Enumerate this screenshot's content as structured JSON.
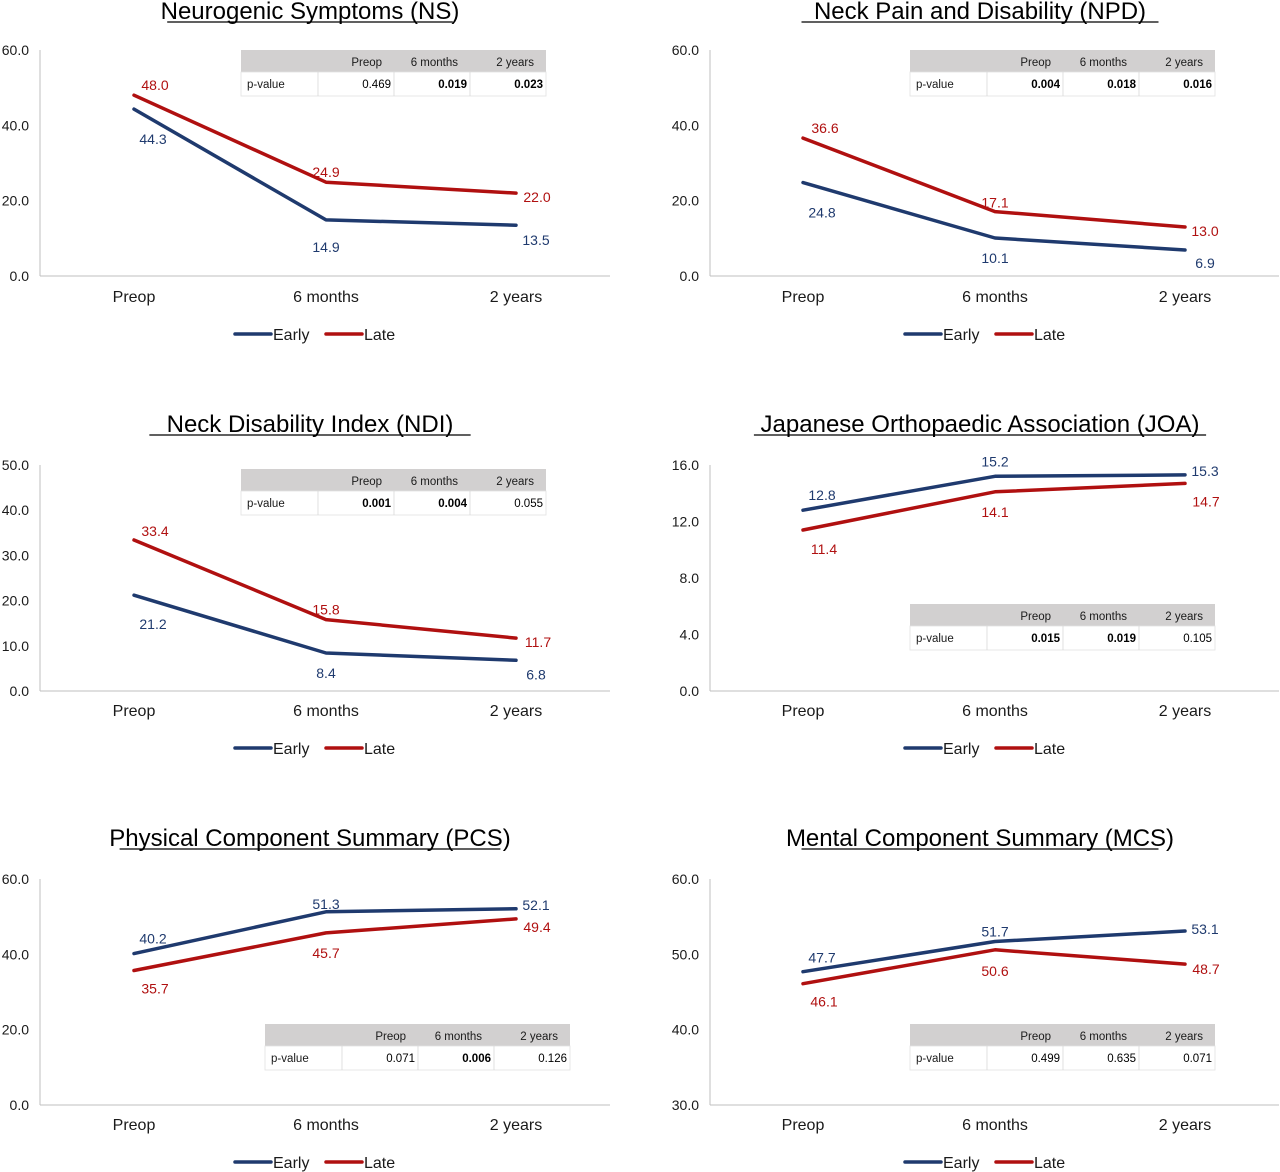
{
  "legend_labels": [
    "Early",
    "Late"
  ],
  "colors": {
    "early": "#1f3a6e",
    "late": "#b01010",
    "header_bg": "#d2d0d0",
    "axis": "#bfbfbf",
    "text": "#1a1a1a"
  },
  "chart_data": [
    {
      "type": "line",
      "title": "Neurogenic Symptoms (NS)",
      "categories": [
        "Preop",
        "6 months",
        "2 years"
      ],
      "ylim": [
        0,
        60
      ],
      "yticks": [
        "0.0",
        "20.0",
        "40.0",
        "60.0"
      ],
      "series": [
        {
          "name": "Early",
          "values": [
            44.3,
            14.9,
            13.5
          ],
          "labels": [
            "44.3",
            "14.9",
            "13.5"
          ]
        },
        {
          "name": "Late",
          "values": [
            48.0,
            24.9,
            22.0
          ],
          "labels": [
            "48.0",
            "24.9",
            "22.0"
          ]
        }
      ],
      "pvalue_table": {
        "row_label": "p-value",
        "headers": [
          "Preop",
          "6 months",
          "2 years"
        ],
        "values": [
          "0.469",
          "0.019",
          "0.023"
        ],
        "bold": [
          false,
          true,
          true
        ]
      },
      "legend": "bottom"
    },
    {
      "type": "line",
      "title": "Neck Pain and Disability (NPD)",
      "categories": [
        "Preop",
        "6 months",
        "2 years"
      ],
      "ylim": [
        0,
        60
      ],
      "yticks": [
        "0.0",
        "20.0",
        "40.0",
        "60.0"
      ],
      "series": [
        {
          "name": "Early",
          "values": [
            24.8,
            10.1,
            6.9
          ],
          "labels": [
            "24.8",
            "10.1",
            "6.9"
          ]
        },
        {
          "name": "Late",
          "values": [
            36.6,
            17.1,
            13.0
          ],
          "labels": [
            "36.6",
            "17.1",
            "13.0"
          ]
        }
      ],
      "pvalue_table": {
        "row_label": "p-value",
        "headers": [
          "Preop",
          "6 months",
          "2 years"
        ],
        "values": [
          "0.004",
          "0.018",
          "0.016"
        ],
        "bold": [
          true,
          true,
          true
        ]
      },
      "legend": "bottom"
    },
    {
      "type": "line",
      "title": "Neck Disability Index (NDI)",
      "categories": [
        "Preop",
        "6 months",
        "2 years"
      ],
      "ylim": [
        0,
        50
      ],
      "yticks": [
        "0.0",
        "10.0",
        "20.0",
        "30.0",
        "40.0",
        "50.0"
      ],
      "series": [
        {
          "name": "Early",
          "values": [
            21.2,
            8.4,
            6.8
          ],
          "labels": [
            "21.2",
            "8.4",
            "6.8"
          ]
        },
        {
          "name": "Late",
          "values": [
            33.4,
            15.8,
            11.7
          ],
          "labels": [
            "33.4",
            "15.8",
            "11.7"
          ]
        }
      ],
      "pvalue_table": {
        "row_label": "p-value",
        "headers": [
          "Preop",
          "6 months",
          "2 years"
        ],
        "values": [
          "0.001",
          "0.004",
          "0.055"
        ],
        "bold": [
          true,
          true,
          false
        ]
      },
      "legend": "bottom"
    },
    {
      "type": "line",
      "title": "Japanese Orthopaedic Association (JOA)",
      "categories": [
        "Preop",
        "6 months",
        "2 years"
      ],
      "ylim": [
        0,
        16
      ],
      "yticks": [
        "0.0",
        "4.0",
        "8.0",
        "12.0",
        "16.0"
      ],
      "series": [
        {
          "name": "Early",
          "values": [
            12.8,
            15.2,
            15.3
          ],
          "labels": [
            "12.8",
            "15.2",
            "15.3"
          ]
        },
        {
          "name": "Late",
          "values": [
            11.4,
            14.1,
            14.7
          ],
          "labels": [
            "11.4",
            "14.1",
            "14.7"
          ]
        }
      ],
      "pvalue_table": {
        "row_label": "p-value",
        "headers": [
          "Preop",
          "6 months",
          "2 years"
        ],
        "values": [
          "0.015",
          "0.019",
          "0.105"
        ],
        "bold": [
          true,
          true,
          false
        ]
      },
      "legend": "bottom"
    },
    {
      "type": "line",
      "title": "Physical Component Summary (PCS)",
      "categories": [
        "Preop",
        "6 months",
        "2 years"
      ],
      "ylim": [
        0,
        60
      ],
      "yticks": [
        "0.0",
        "20.0",
        "40.0",
        "60.0"
      ],
      "series": [
        {
          "name": "Early",
          "values": [
            40.2,
            51.3,
            52.1
          ],
          "labels": [
            "40.2",
            "51.3",
            "52.1"
          ]
        },
        {
          "name": "Late",
          "values": [
            35.7,
            45.7,
            49.4
          ],
          "labels": [
            "35.7",
            "45.7",
            "49.4"
          ]
        }
      ],
      "pvalue_table": {
        "row_label": "p-value",
        "headers": [
          "Preop",
          "6 months",
          "2 years"
        ],
        "values": [
          "0.071",
          "0.006",
          "0.126"
        ],
        "bold": [
          false,
          true,
          false
        ]
      },
      "legend": "bottom"
    },
    {
      "type": "line",
      "title": "Mental Component Summary (MCS)",
      "categories": [
        "Preop",
        "6 months",
        "2 years"
      ],
      "ylim": [
        30,
        60
      ],
      "yticks": [
        "30.0",
        "40.0",
        "50.0",
        "60.0"
      ],
      "series": [
        {
          "name": "Early",
          "values": [
            47.7,
            51.7,
            53.1
          ],
          "labels": [
            "47.7",
            "51.7",
            "53.1"
          ]
        },
        {
          "name": "Late",
          "values": [
            46.1,
            50.6,
            48.7
          ],
          "labels": [
            "46.1",
            "50.6",
            "48.7"
          ]
        }
      ],
      "pvalue_table": {
        "row_label": "p-value",
        "headers": [
          "Preop",
          "6 months",
          "2 years"
        ],
        "values": [
          "0.499",
          "0.635",
          "0.071"
        ],
        "bold": [
          false,
          false,
          false
        ]
      },
      "legend": "bottom"
    }
  ]
}
